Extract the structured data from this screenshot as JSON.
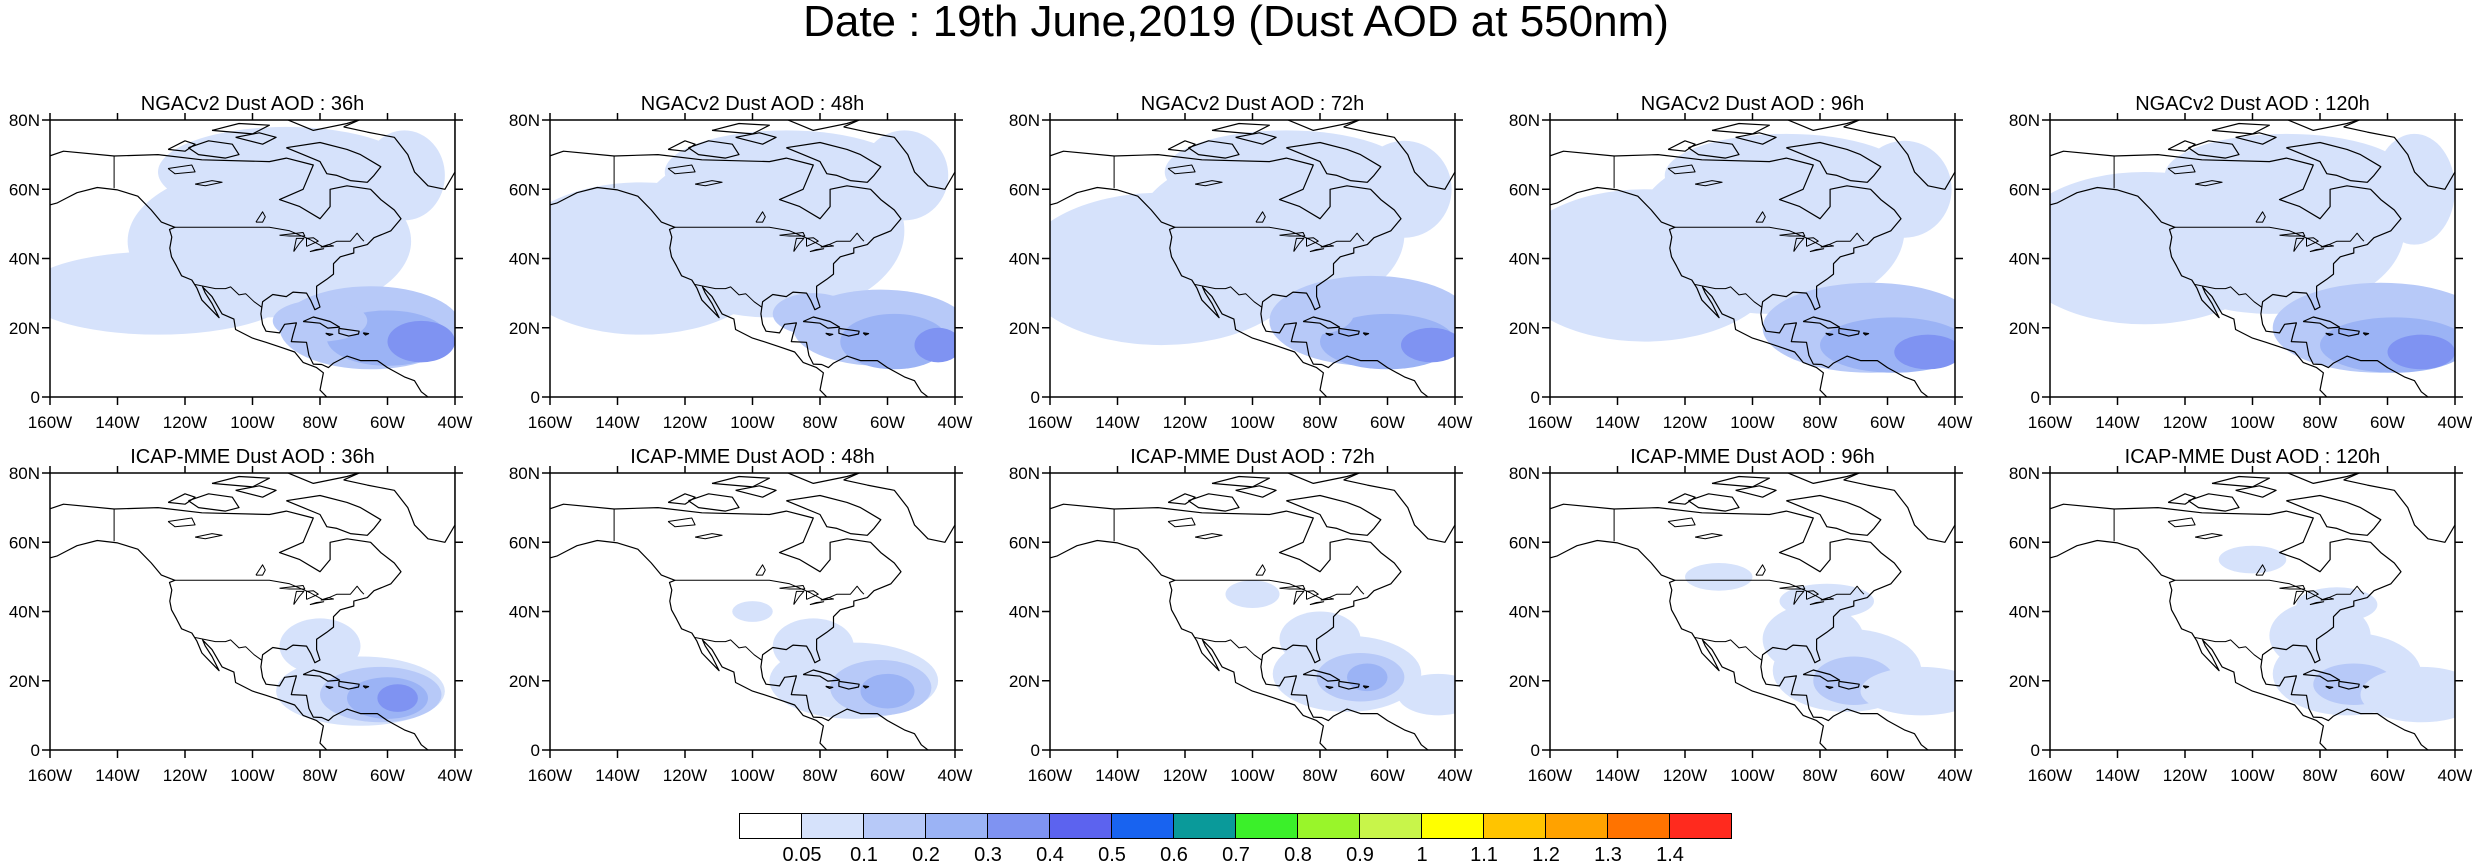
{
  "title": "Date : 19th June,2019 (Dust AOD at 550nm)",
  "rows": [
    {
      "model": "NGACv2",
      "panels": [
        {
          "title": "NGACv2 Dust AOD : 36h"
        },
        {
          "title": "NGACv2 Dust AOD : 48h"
        },
        {
          "title": "NGACv2 Dust AOD : 72h"
        },
        {
          "title": "NGACv2 Dust AOD : 96h"
        },
        {
          "title": "NGACv2 Dust AOD : 120h"
        }
      ]
    },
    {
      "model": "ICAP-MME",
      "panels": [
        {
          "title": "ICAP-MME Dust AOD : 36h"
        },
        {
          "title": "ICAP-MME Dust AOD : 48h"
        },
        {
          "title": "ICAP-MME Dust AOD : 72h"
        },
        {
          "title": "ICAP-MME Dust AOD : 96h"
        },
        {
          "title": "ICAP-MME Dust AOD : 120h"
        }
      ]
    }
  ],
  "axes": {
    "x_ticks": [
      "160W",
      "140W",
      "120W",
      "100W",
      "80W",
      "60W",
      "40W"
    ],
    "y_ticks": [
      "0",
      "20N",
      "40N",
      "60N",
      "80N"
    ],
    "lon_range": [
      -160,
      -40
    ],
    "lat_range": [
      0,
      80
    ]
  },
  "colorbar": {
    "colors": [
      "#ffffff",
      "#d6e2fb",
      "#b7c9f8",
      "#9bb3f5",
      "#7f93f2",
      "#5c63ef",
      "#1863f0",
      "#0a9a9a",
      "#3bf02a",
      "#99f52a",
      "#c8f54a",
      "#ffff00",
      "#ffc400",
      "#ffa200",
      "#ff7300",
      "#ff2a1e"
    ],
    "labels": [
      "0.05",
      "0.1",
      "0.2",
      "0.3",
      "0.4",
      "0.5",
      "0.6",
      "0.7",
      "0.8",
      "0.9",
      "1",
      "1.1",
      "1.2",
      "1.3",
      "1.4"
    ]
  }
}
